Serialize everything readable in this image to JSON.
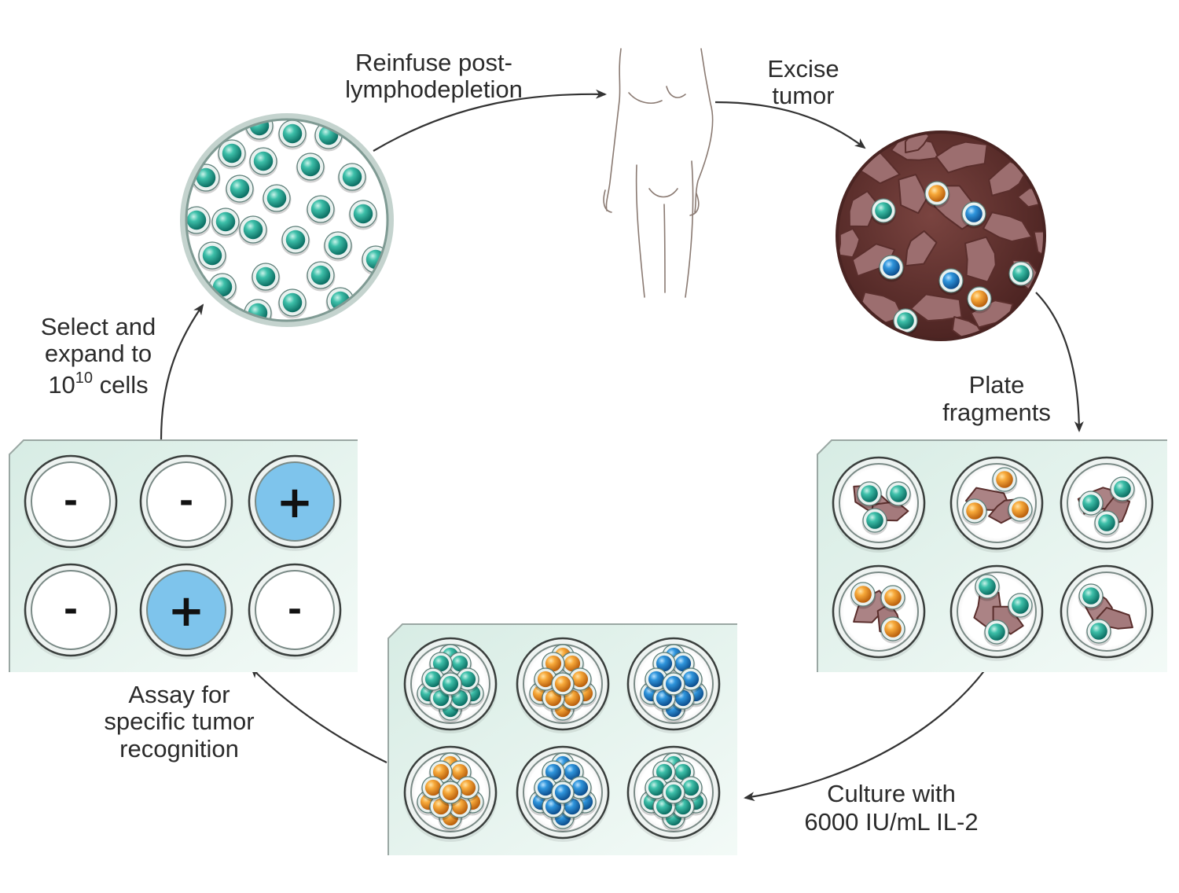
{
  "labels": {
    "reinfuse_line1": "Reinfuse post-",
    "reinfuse_line2": "lymphodepletion",
    "excise_line1": "Excise",
    "excise_line2": "tumor",
    "plate_line1": "Plate",
    "plate_line2": "fragments",
    "culture_line1": "Culture with",
    "culture_line2": "6000 IU/mL IL-2",
    "assay_line1": "Assay for",
    "assay_line2": "specific tumor",
    "assay_line3": "recognition",
    "select_line1": "Select and",
    "select_line2": "expand to",
    "select_line3_base": "10",
    "select_line3_exp": "10",
    "select_line3_rest": " cells"
  },
  "assay_results": [
    "-",
    "-",
    "+",
    "-",
    "+",
    "-"
  ],
  "colors": {
    "teal_cell": "#1f9e8e",
    "orange_cell": "#f0a030",
    "blue_cell": "#2080c8",
    "tumor_bg": "#6e3a36",
    "tumor_fragment": "#a07476",
    "tray": "#e3f1ec",
    "positive_well": "#7ec4ec"
  },
  "icons": {
    "patient": "human-body-outline-icon",
    "expanded_cells": "til-cell-population-icon",
    "tumor": "excised-tumor-icon"
  }
}
